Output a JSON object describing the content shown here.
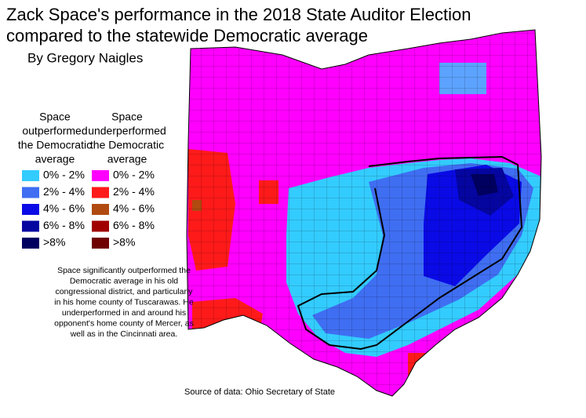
{
  "title": [
    "Zack Space's performance in the 2018 State Auditor Election",
    "compared to the statewide Democratic average"
  ],
  "byline": "By Gregory Naigles",
  "legend": [
    {
      "heading": [
        "Space",
        "outperformed",
        "the Democratic",
        "average"
      ],
      "items": [
        {
          "label": "0% - 2%",
          "color": "#33ccff"
        },
        {
          "label": "2% - 4%",
          "color": "#3f6ef2"
        },
        {
          "label": "4% - 6%",
          "color": "#0a0ae6"
        },
        {
          "label": "6% - 8%",
          "color": "#0505a0"
        },
        {
          "label": ">8%",
          "color": "#000060"
        }
      ]
    },
    {
      "heading": [
        "Space",
        "underperformed",
        "the Democratic",
        "average"
      ],
      "items": [
        {
          "label": "0% - 2%",
          "color": "#ff00ff"
        },
        {
          "label": "2% - 4%",
          "color": "#ff1a1a"
        },
        {
          "label": "4% - 6%",
          "color": "#b04a10"
        },
        {
          "label": "6% - 8%",
          "color": "#a00000"
        },
        {
          "label": ">8%",
          "color": "#700000"
        }
      ]
    }
  ],
  "note": [
    "Space significantly outperformed the",
    "Democratic average in his old",
    "congressional district, and particularly",
    "in his home county of Tuscarawas. He",
    "underperformed in and around his",
    "opponent's home county of Mercer, as",
    "well as in the Cincinnati area."
  ],
  "source": "Source of data: Ohio Secretary of State"
}
